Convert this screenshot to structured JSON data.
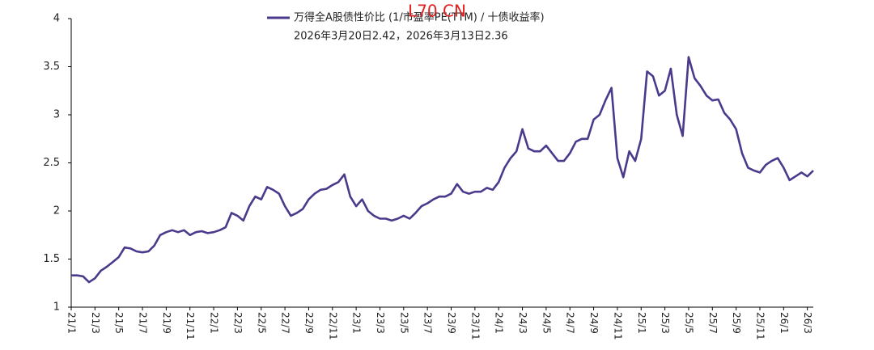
{
  "chart_data": {
    "type": "line",
    "legend_text": "万得全A股债性价比 (1/市盈率PE(TTM) / 十债收益率)",
    "subtitle": "2026年3月20日2.42，2026年3月13日2.36",
    "watermark": "L70 CN",
    "categories": [
      "21/1",
      null,
      null,
      null,
      "21/3",
      null,
      null,
      null,
      "21/5",
      null,
      null,
      null,
      "21/7",
      null,
      null,
      null,
      "21/9",
      null,
      null,
      null,
      "21/11",
      null,
      null,
      null,
      "22/1",
      null,
      null,
      null,
      "22/3",
      null,
      null,
      null,
      "22/5",
      null,
      null,
      null,
      "22/7",
      null,
      null,
      null,
      "22/9",
      null,
      null,
      null,
      "22/11",
      null,
      null,
      null,
      "23/1",
      null,
      null,
      null,
      "23/3",
      null,
      null,
      null,
      "23/5",
      null,
      null,
      null,
      "23/7",
      null,
      null,
      null,
      "23/9",
      null,
      null,
      null,
      "23/11",
      null,
      null,
      null,
      "24/1",
      null,
      null,
      null,
      "24/3",
      null,
      null,
      null,
      "24/5",
      null,
      null,
      null,
      "24/7",
      null,
      null,
      null,
      "24/9",
      null,
      null,
      null,
      "24/11",
      null,
      null,
      null,
      "25/1",
      null,
      null,
      null,
      "25/3",
      null,
      null,
      null,
      "25/5",
      null,
      null,
      null,
      "25/7",
      null,
      null,
      null,
      "25/9",
      null,
      null,
      null,
      "25/11",
      null,
      null,
      null,
      "26/1",
      null,
      null,
      null,
      "26/3",
      null
    ],
    "series": [
      {
        "name": "万得全A股债性价比",
        "color": "#4b3a8c",
        "values": [
          1.33,
          1.33,
          1.32,
          1.26,
          1.3,
          1.38,
          1.42,
          1.47,
          1.52,
          1.62,
          1.61,
          1.58,
          1.57,
          1.58,
          1.64,
          1.75,
          1.78,
          1.8,
          1.78,
          1.8,
          1.75,
          1.78,
          1.79,
          1.77,
          1.78,
          1.8,
          1.83,
          1.98,
          1.95,
          1.9,
          2.05,
          2.15,
          2.12,
          2.25,
          2.22,
          2.18,
          2.05,
          1.95,
          1.98,
          2.02,
          2.12,
          2.18,
          2.22,
          2.23,
          2.27,
          2.3,
          2.38,
          2.15,
          2.05,
          2.12,
          2.0,
          1.95,
          1.92,
          1.92,
          1.9,
          1.92,
          1.95,
          1.92,
          1.98,
          2.05,
          2.08,
          2.12,
          2.15,
          2.15,
          2.18,
          2.28,
          2.2,
          2.18,
          2.2,
          2.2,
          2.24,
          2.22,
          2.3,
          2.45,
          2.55,
          2.62,
          2.85,
          2.65,
          2.62,
          2.62,
          2.68,
          2.6,
          2.52,
          2.52,
          2.6,
          2.72,
          2.75,
          2.75,
          2.95,
          3.0,
          3.15,
          3.28,
          2.55,
          2.35,
          2.62,
          2.52,
          2.75,
          3.45,
          3.4,
          3.2,
          3.25,
          3.48,
          3.0,
          2.78,
          3.6,
          3.38,
          3.3,
          3.2,
          3.15,
          3.16,
          3.02,
          2.95,
          2.85,
          2.6,
          2.45,
          2.42,
          2.4,
          2.48,
          2.52,
          2.55,
          2.45,
          2.32,
          2.36,
          2.4,
          2.36,
          2.42
        ]
      }
    ],
    "ylim": [
      1,
      4
    ],
    "yticks": [
      1,
      1.5,
      2,
      2.5,
      3,
      3.5,
      4
    ],
    "grid": false
  }
}
